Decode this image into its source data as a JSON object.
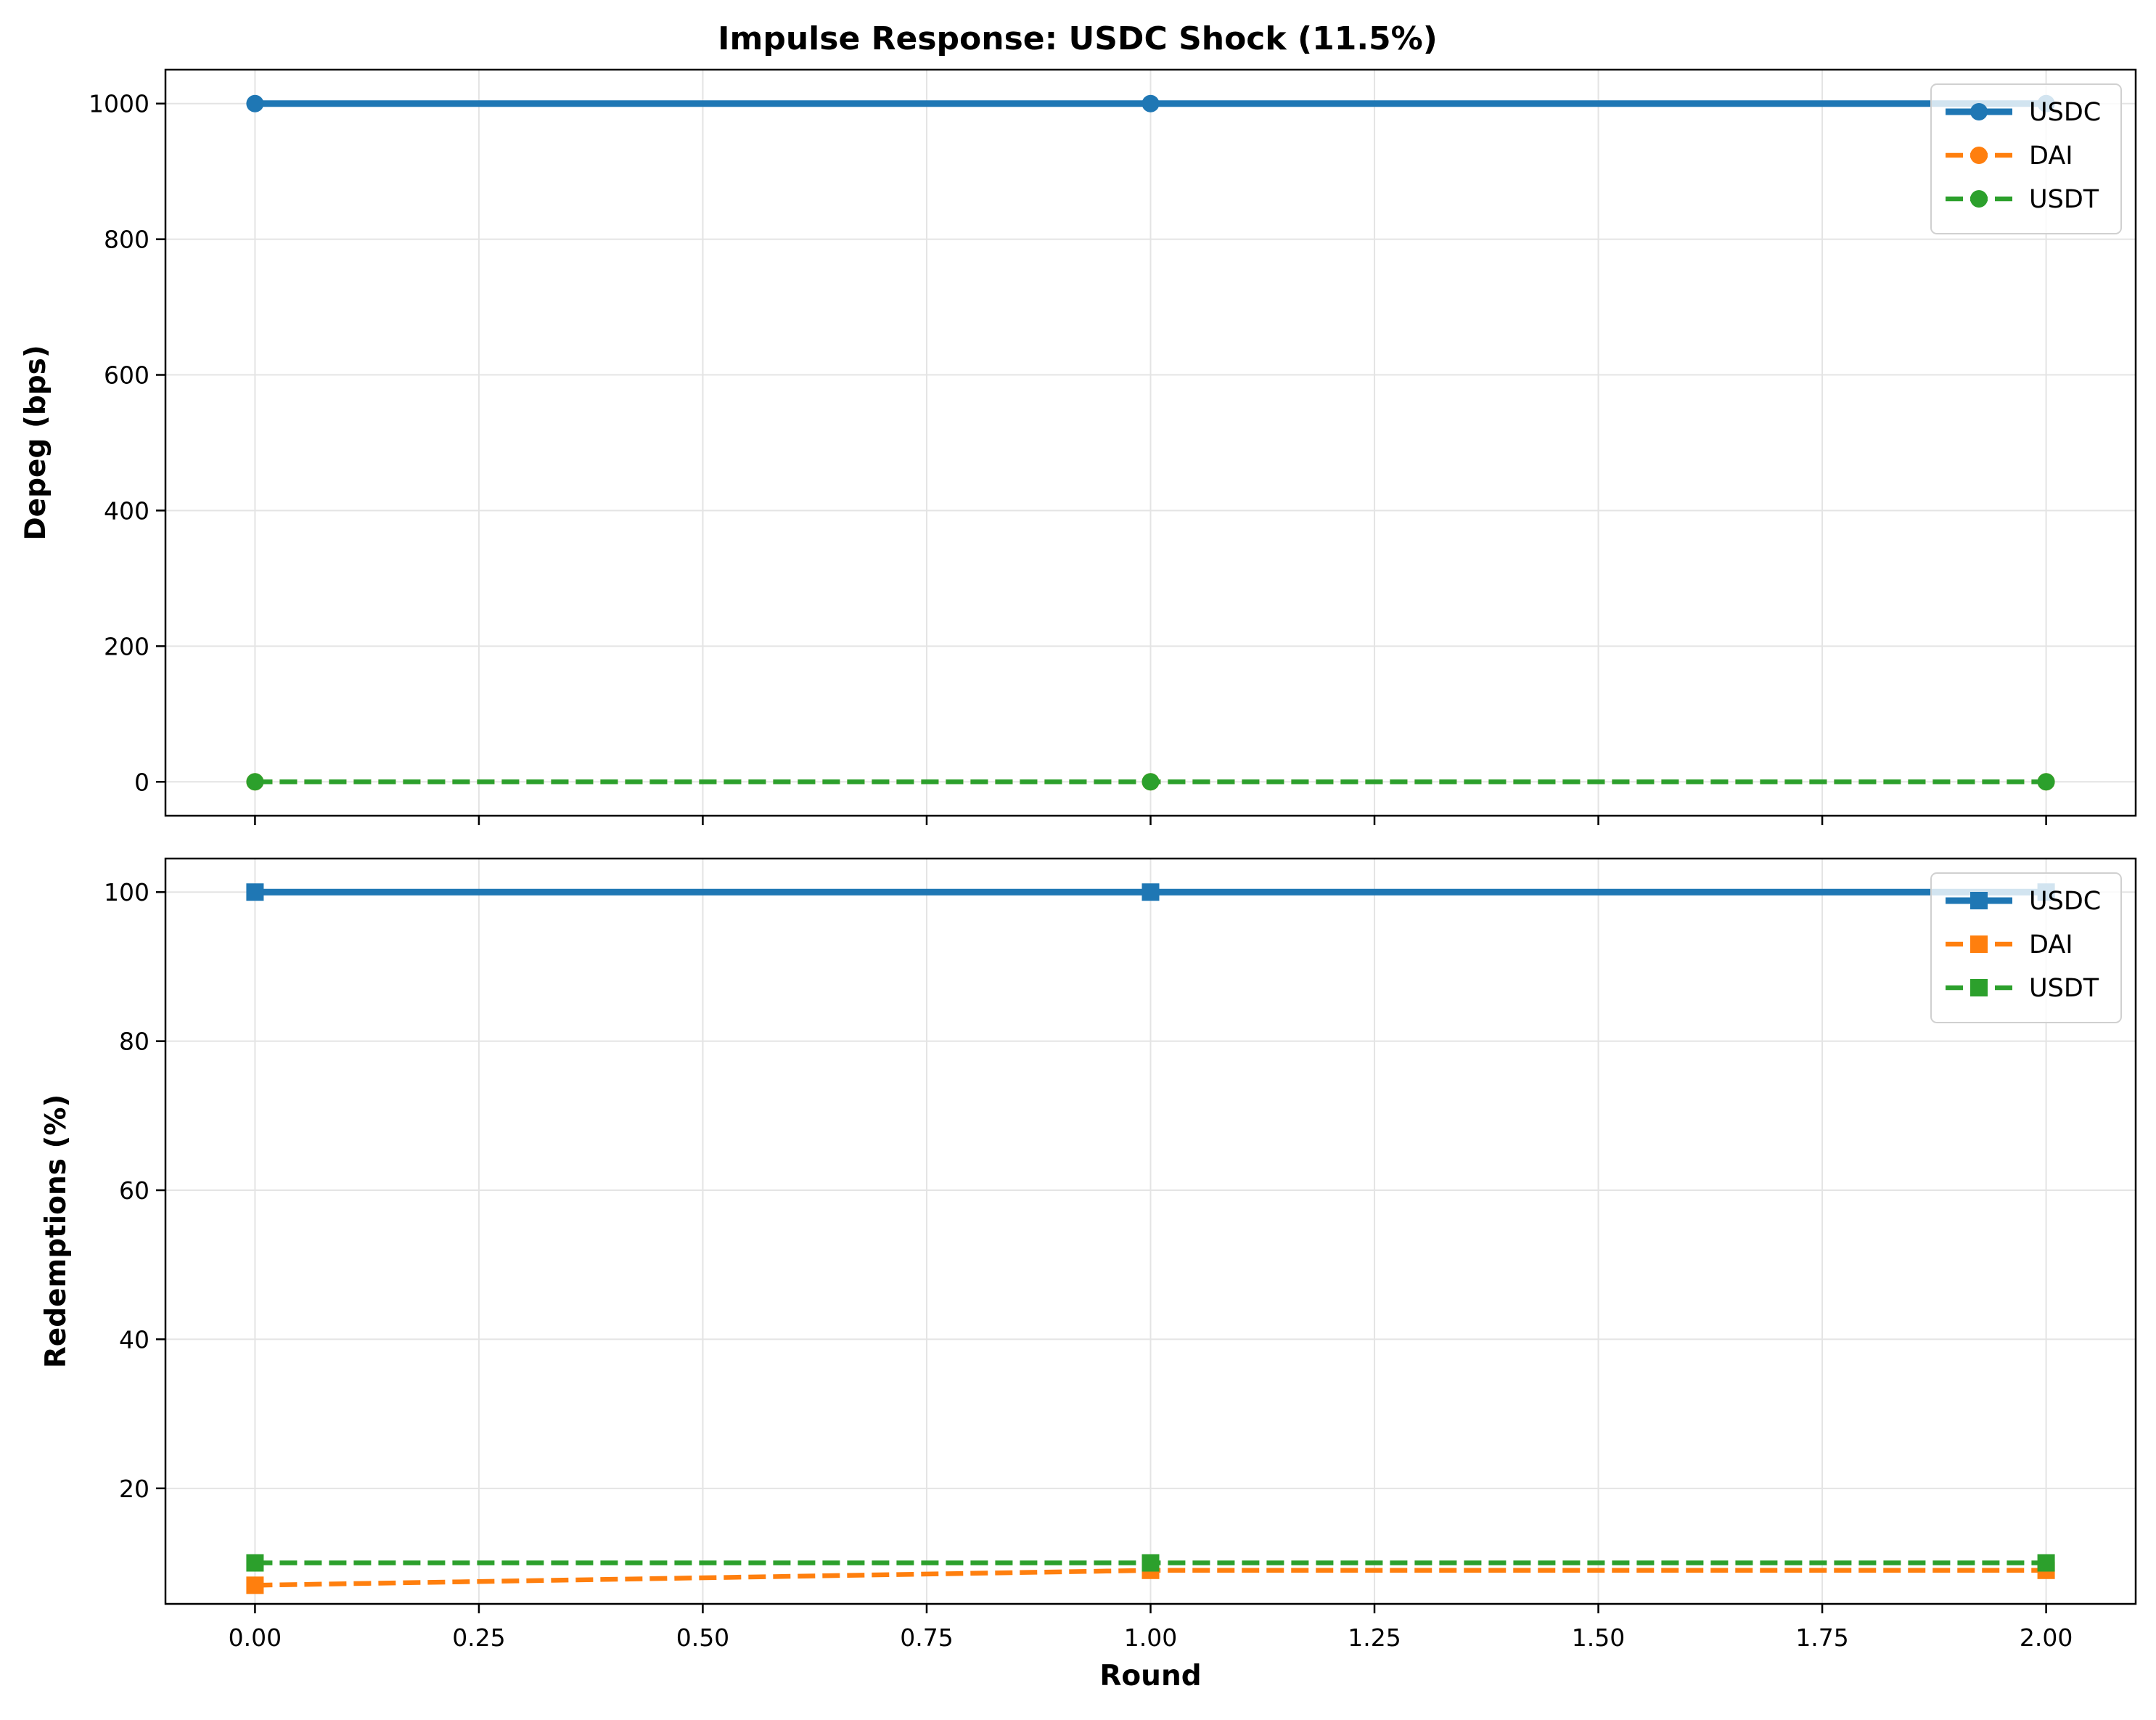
{
  "figure": {
    "title": "Impulse Response: USDC Shock (11.5%)"
  },
  "chart_data": [
    {
      "type": "line",
      "title": "Impulse Response: USDC Shock (11.5%)",
      "xlabel": "",
      "ylabel": "Depeg (bps)",
      "xlim": [
        -0.1,
        2.1
      ],
      "ylim": [
        -50,
        1050
      ],
      "xticks": [
        0.0,
        0.25,
        0.5,
        0.75,
        1.0,
        1.25,
        1.5,
        1.75,
        2.0
      ],
      "xticklabels_shown": false,
      "yticks": [
        0,
        200,
        400,
        600,
        800,
        1000
      ],
      "yticklabels": [
        "0",
        "200",
        "400",
        "600",
        "800",
        "1000"
      ],
      "grid": true,
      "legend": "upper right",
      "marker": "circle",
      "series": [
        {
          "name": "USDC",
          "color": "#1f77b4",
          "linestyle": "solid",
          "x": [
            0,
            1,
            2
          ],
          "values": [
            1000,
            1000,
            1000
          ]
        },
        {
          "name": "DAI",
          "color": "#ff7f0e",
          "linestyle": "dashed",
          "x": [
            0,
            1,
            2
          ],
          "values": [
            0,
            0,
            0
          ]
        },
        {
          "name": "USDT",
          "color": "#2ca02c",
          "linestyle": "dashed",
          "x": [
            0,
            1,
            2
          ],
          "values": [
            0,
            0,
            0
          ]
        }
      ]
    },
    {
      "type": "line",
      "title": "",
      "xlabel": "Round",
      "ylabel": "Redemptions (%)",
      "xlim": [
        -0.1,
        2.1
      ],
      "ylim": [
        4.5,
        104.5
      ],
      "xticks": [
        0.0,
        0.25,
        0.5,
        0.75,
        1.0,
        1.25,
        1.5,
        1.75,
        2.0
      ],
      "xticklabels": [
        "0.00",
        "0.25",
        "0.50",
        "0.75",
        "1.00",
        "1.25",
        "1.50",
        "1.75",
        "2.00"
      ],
      "xticklabels_shown": true,
      "yticks": [
        20,
        40,
        60,
        80,
        100
      ],
      "yticklabels": [
        "20",
        "40",
        "60",
        "80",
        "100"
      ],
      "grid": true,
      "legend": "upper right",
      "marker": "square",
      "series": [
        {
          "name": "USDC",
          "color": "#1f77b4",
          "linestyle": "solid",
          "x": [
            0,
            1,
            2
          ],
          "values": [
            100,
            100,
            100
          ]
        },
        {
          "name": "DAI",
          "color": "#ff7f0e",
          "linestyle": "dashed",
          "x": [
            0,
            1,
            2
          ],
          "values": [
            7,
            9,
            9
          ]
        },
        {
          "name": "USDT",
          "color": "#2ca02c",
          "linestyle": "dashed",
          "x": [
            0,
            1,
            2
          ],
          "values": [
            10,
            10,
            10
          ]
        }
      ]
    }
  ]
}
